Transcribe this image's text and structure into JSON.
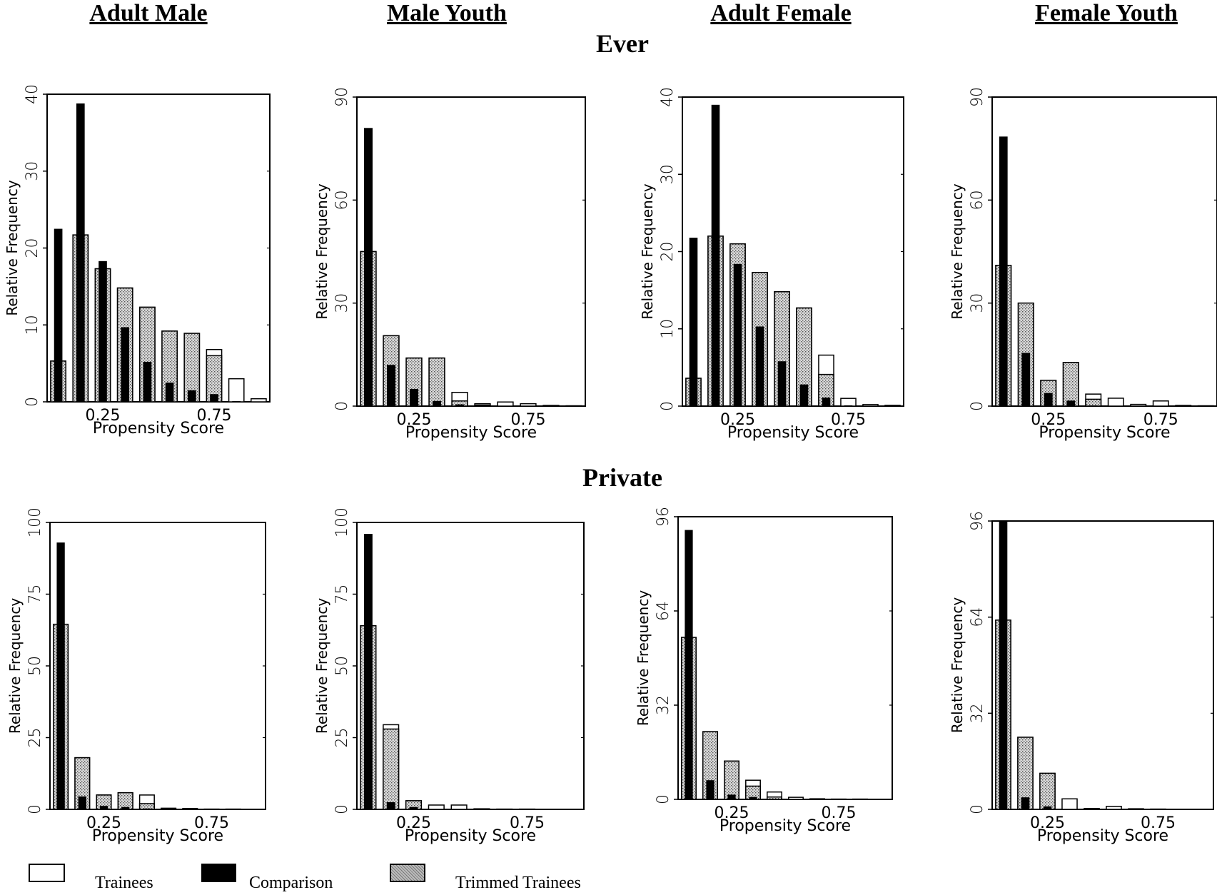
{
  "titles": {
    "columns": [
      "Adult Male",
      "Male Youth",
      "Adult Female",
      "Female Youth"
    ],
    "rows": [
      "Ever",
      "Private"
    ]
  },
  "legend": {
    "trainees": "Trainees",
    "comparison": "Comparison",
    "trimmed": "Trimmed Trainees"
  },
  "colors": {
    "comparison": "#000000",
    "trainees": "#ffffff",
    "trimmed": "#bdbdbd"
  },
  "chart_data": [
    {
      "type": "bar",
      "group": "Ever",
      "column": "Adult Male",
      "ylabel": "Relative Frequency",
      "xlabel": "Propensity Score",
      "yticks": [
        0,
        10,
        20,
        30,
        40
      ],
      "ylim": [
        0,
        40
      ],
      "xticks": [
        "0.25",
        "0.75"
      ],
      "bins": [
        {
          "comparison": 22.5,
          "trainees": 5.3,
          "trimmed": 5.3
        },
        {
          "comparison": 38.8,
          "trainees": 21.7,
          "trimmed": 21.7
        },
        {
          "comparison": 18.3,
          "trainees": 17.3,
          "trimmed": 17.3
        },
        {
          "comparison": 9.7,
          "trainees": 14.8,
          "trimmed": 14.8
        },
        {
          "comparison": 5.2,
          "trainees": 12.3,
          "trimmed": 12.3
        },
        {
          "comparison": 2.5,
          "trainees": 9.2,
          "trimmed": 9.2
        },
        {
          "comparison": 1.5,
          "trainees": 8.9,
          "trimmed": 8.9
        },
        {
          "comparison": 1.0,
          "trainees": 6.8,
          "trimmed": 6.0
        },
        {
          "comparison": 0.1,
          "trainees": 3.0,
          "trimmed": 0.0
        },
        {
          "comparison": 0.0,
          "trainees": 0.4,
          "trimmed": 0.0
        }
      ]
    },
    {
      "type": "bar",
      "group": "Ever",
      "column": "Male Youth",
      "ylabel": "Relative Frequency",
      "xlabel": "Propensity Score",
      "yticks": [
        0,
        30,
        60,
        90
      ],
      "ylim": [
        0,
        90
      ],
      "xticks": [
        "0.25",
        "0.75"
      ],
      "bins": [
        {
          "comparison": 81,
          "trainees": 45,
          "trimmed": 45
        },
        {
          "comparison": 12,
          "trainees": 20.5,
          "trimmed": 20.5
        },
        {
          "comparison": 5,
          "trainees": 14,
          "trimmed": 14
        },
        {
          "comparison": 1.5,
          "trainees": 14,
          "trimmed": 14
        },
        {
          "comparison": 0.5,
          "trainees": 4,
          "trimmed": 1.5
        },
        {
          "comparison": 0.2,
          "trainees": 0.7,
          "trimmed": 0.3
        },
        {
          "comparison": 0.0,
          "trainees": 1.2,
          "trimmed": 0.0
        },
        {
          "comparison": 0.0,
          "trainees": 0.7,
          "trimmed": 0.0
        },
        {
          "comparison": 0.0,
          "trainees": 0.2,
          "trimmed": 0.0
        },
        {
          "comparison": 0.0,
          "trainees": 0.1,
          "trimmed": 0.0
        }
      ]
    },
    {
      "type": "bar",
      "group": "Ever",
      "column": "Adult Female",
      "ylabel": "Relative Frequency",
      "xlabel": "Propensity Score",
      "yticks": [
        0,
        10,
        20,
        30,
        40
      ],
      "ylim": [
        0,
        40
      ],
      "xticks": [
        "0.25",
        "0.75"
      ],
      "bins": [
        {
          "comparison": 21.8,
          "trainees": 3.6,
          "trimmed": 3.6
        },
        {
          "comparison": 39.0,
          "trainees": 22.0,
          "trimmed": 22.0
        },
        {
          "comparison": 18.4,
          "trainees": 21.0,
          "trimmed": 21.0
        },
        {
          "comparison": 10.3,
          "trainees": 17.3,
          "trimmed": 17.3
        },
        {
          "comparison": 5.8,
          "trainees": 14.8,
          "trimmed": 14.8
        },
        {
          "comparison": 2.8,
          "trainees": 12.7,
          "trimmed": 12.7
        },
        {
          "comparison": 1.1,
          "trainees": 6.6,
          "trimmed": 4.1
        },
        {
          "comparison": 0.1,
          "trainees": 1.0,
          "trimmed": 0.0
        },
        {
          "comparison": 0.0,
          "trainees": 0.2,
          "trimmed": 0.0
        },
        {
          "comparison": 0.0,
          "trainees": 0.1,
          "trimmed": 0.0
        }
      ]
    },
    {
      "type": "bar",
      "group": "Ever",
      "column": "Female Youth",
      "ylabel": "Relative Frequency",
      "xlabel": "Propensity Score",
      "yticks": [
        0,
        30,
        60,
        90
      ],
      "ylim": [
        0,
        90
      ],
      "xticks": [
        "0.25",
        "0.75"
      ],
      "bins": [
        {
          "comparison": 78.5,
          "trainees": 41,
          "trimmed": 41
        },
        {
          "comparison": 15.5,
          "trainees": 30,
          "trimmed": 30
        },
        {
          "comparison": 3.8,
          "trainees": 7.5,
          "trimmed": 7.5
        },
        {
          "comparison": 1.6,
          "trainees": 12.7,
          "trimmed": 12.7
        },
        {
          "comparison": 0.2,
          "trainees": 3.5,
          "trimmed": 2.0
        },
        {
          "comparison": 0.0,
          "trainees": 2.3,
          "trimmed": 0.0
        },
        {
          "comparison": 0.0,
          "trainees": 0.5,
          "trimmed": 0.0
        },
        {
          "comparison": 0.0,
          "trainees": 1.5,
          "trimmed": 0.0
        },
        {
          "comparison": 0.0,
          "trainees": 0.2,
          "trimmed": 0.0
        },
        {
          "comparison": 0.0,
          "trainees": 0.1,
          "trimmed": 0.0
        }
      ]
    },
    {
      "type": "bar",
      "group": "Private",
      "column": "Adult Male",
      "ylabel": "Relative Frequency",
      "xlabel": "Propensity Score",
      "yticks": [
        0,
        25,
        50,
        75,
        100
      ],
      "ylim": [
        0,
        100
      ],
      "xticks": [
        "0.25",
        "0.75"
      ],
      "bins": [
        {
          "comparison": 93,
          "trainees": 64.5,
          "trimmed": 64.5
        },
        {
          "comparison": 4.5,
          "trainees": 18,
          "trimmed": 18
        },
        {
          "comparison": 1.2,
          "trainees": 5,
          "trimmed": 5
        },
        {
          "comparison": 0.8,
          "trainees": 5.8,
          "trimmed": 5.8
        },
        {
          "comparison": 0.3,
          "trainees": 5,
          "trimmed": 2
        },
        {
          "comparison": 0.1,
          "trainees": 0.4,
          "trimmed": 0.2
        },
        {
          "comparison": 0.0,
          "trainees": 0.3,
          "trimmed": 0.0
        },
        {
          "comparison": 0.0,
          "trainees": 0.1,
          "trimmed": 0.0
        },
        {
          "comparison": 0.0,
          "trainees": 0.1,
          "trimmed": 0.0
        },
        {
          "comparison": 0.0,
          "trainees": 0.05,
          "trimmed": 0.0
        }
      ]
    },
    {
      "type": "bar",
      "group": "Private",
      "column": "Male Youth",
      "ylabel": "Relative Frequency",
      "xlabel": "Propensity Score",
      "yticks": [
        0,
        25,
        50,
        75,
        100
      ],
      "ylim": [
        0,
        100
      ],
      "xticks": [
        "0.25",
        "0.75"
      ],
      "bins": [
        {
          "comparison": 96,
          "trainees": 64,
          "trimmed": 64
        },
        {
          "comparison": 2.5,
          "trainees": 29.5,
          "trimmed": 28
        },
        {
          "comparison": 0.8,
          "trainees": 3,
          "trimmed": 3
        },
        {
          "comparison": 0.1,
          "trainees": 1.5,
          "trimmed": 0
        },
        {
          "comparison": 0.0,
          "trainees": 1.5,
          "trimmed": 0
        },
        {
          "comparison": 0.0,
          "trainees": 0.2,
          "trimmed": 0
        },
        {
          "comparison": 0.0,
          "trainees": 0.1,
          "trimmed": 0
        },
        {
          "comparison": 0.0,
          "trainees": 0.1,
          "trimmed": 0
        },
        {
          "comparison": 0.0,
          "trainees": 0.05,
          "trimmed": 0
        },
        {
          "comparison": 0.0,
          "trainees": 0.05,
          "trimmed": 0
        }
      ]
    },
    {
      "type": "bar",
      "group": "Private",
      "column": "Adult Female",
      "ylabel": "Relative Frequency",
      "xlabel": "Propensity Score",
      "yticks": [
        0,
        32,
        64,
        96
      ],
      "ylim": [
        0,
        96
      ],
      "xticks": [
        "0.25",
        "0.75"
      ],
      "bins": [
        {
          "comparison": 91.5,
          "trainees": 55,
          "trimmed": 55
        },
        {
          "comparison": 6.5,
          "trainees": 23,
          "trimmed": 23
        },
        {
          "comparison": 1.6,
          "trainees": 13,
          "trimmed": 13
        },
        {
          "comparison": 0.8,
          "trainees": 6.5,
          "trimmed": 4.5
        },
        {
          "comparison": 0.2,
          "trainees": 2.5,
          "trimmed": 0.8
        },
        {
          "comparison": 0.0,
          "trainees": 0.7,
          "trimmed": 0.0
        },
        {
          "comparison": 0.0,
          "trainees": 0.2,
          "trimmed": 0.0
        },
        {
          "comparison": 0.0,
          "trainees": 0.1,
          "trimmed": 0.0
        },
        {
          "comparison": 0.0,
          "trainees": 0.1,
          "trimmed": 0.0
        },
        {
          "comparison": 0.0,
          "trainees": 0.05,
          "trimmed": 0.0
        }
      ]
    },
    {
      "type": "bar",
      "group": "Private",
      "column": "Female Youth",
      "ylabel": "Relative Frequency",
      "xlabel": "Propensity Score",
      "yticks": [
        0,
        32,
        64,
        96
      ],
      "ylim": [
        0,
        96
      ],
      "xticks": [
        "0.25",
        "0.75"
      ],
      "bins": [
        {
          "comparison": 96,
          "trainees": 63,
          "trimmed": 63
        },
        {
          "comparison": 4,
          "trainees": 24,
          "trimmed": 24
        },
        {
          "comparison": 1.0,
          "trainees": 12,
          "trimmed": 12
        },
        {
          "comparison": 0.1,
          "trainees": 3.5,
          "trimmed": 0
        },
        {
          "comparison": 0.0,
          "trainees": 0.3,
          "trimmed": 0
        },
        {
          "comparison": 0.0,
          "trainees": 1.0,
          "trimmed": 0
        },
        {
          "comparison": 0.0,
          "trainees": 0.2,
          "trimmed": 0
        },
        {
          "comparison": 0.0,
          "trainees": 0.1,
          "trimmed": 0
        },
        {
          "comparison": 0.0,
          "trainees": 0.05,
          "trimmed": 0
        },
        {
          "comparison": 0.0,
          "trainees": 0.05,
          "trimmed": 0
        }
      ]
    }
  ]
}
